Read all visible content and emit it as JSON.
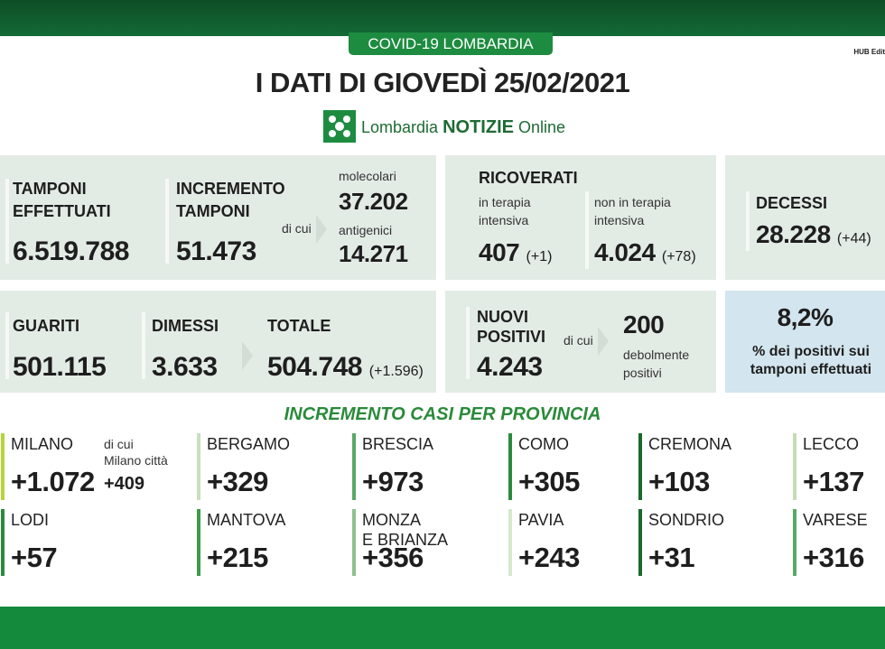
{
  "header": {
    "badge": "COVID-19 LOMBARDIA",
    "editor": "HUB Edit",
    "title": "I DATI DI GIOVEDÌ 25/02/2021",
    "logo": {
      "brand": "Lombardia",
      "name": "NOTIZIE",
      "suffix": "Online"
    }
  },
  "tests": {
    "performed": {
      "label": [
        "TAMPONI",
        "EFFETTUATI"
      ],
      "value": "6.519.788"
    },
    "increase": {
      "label": [
        "INCREMENTO",
        "TAMPONI"
      ],
      "value": "51.473",
      "of_which": "di cui"
    },
    "molecular": {
      "label": "molecolari",
      "value": "37.202"
    },
    "antigen": {
      "label": "antigenici",
      "value": "14.271"
    }
  },
  "hospitalized": {
    "title": "RICOVERATI",
    "icu": {
      "label": [
        "in terapia",
        "intensiva"
      ],
      "value": "407",
      "change": "(+1)"
    },
    "non_icu": {
      "label": [
        "non in terapia",
        "intensiva"
      ],
      "value": "4.024",
      "change": "(+78)"
    }
  },
  "deaths": {
    "label": "DECESSI",
    "value": "28.228",
    "change": "(+44)"
  },
  "recovered": {
    "healed": {
      "label": "GUARITI",
      "value": "501.115"
    },
    "discharged": {
      "label": "DIMESSI",
      "value": "3.633"
    },
    "total": {
      "label": "TOTALE",
      "value": "504.748",
      "change": "(+1.596)"
    }
  },
  "positives": {
    "label": [
      "NUOVI",
      "POSITIVI"
    ],
    "value": "4.243",
    "of_which": "di cui",
    "weak": {
      "value": "200",
      "label": [
        "debolmente",
        "positivi"
      ]
    }
  },
  "rate": {
    "value": "8,2%",
    "label": [
      "% dei positivi sui",
      "tamponi effettuati"
    ]
  },
  "provinces": {
    "title": "INCREMENTO CASI PER PROVINCIA",
    "items": [
      {
        "name": [
          "MILANO"
        ],
        "value": "+1.072",
        "note": [
          "di cui",
          "Milano città"
        ],
        "note_value": "+409"
      },
      {
        "name": [
          "BERGAMO"
        ],
        "value": "+329"
      },
      {
        "name": [
          "BRESCIA"
        ],
        "value": "+973"
      },
      {
        "name": [
          "COMO"
        ],
        "value": "+305"
      },
      {
        "name": [
          "CREMONA"
        ],
        "value": "+103"
      },
      {
        "name": [
          "LECCO"
        ],
        "value": "+137"
      },
      {
        "name": [
          "LODI"
        ],
        "value": "+57"
      },
      {
        "name": [
          "MANTOVA"
        ],
        "value": "+215"
      },
      {
        "name": [
          "MONZA",
          "E BRIANZA"
        ],
        "value": "+356"
      },
      {
        "name": [
          "PAVIA"
        ],
        "value": "+243"
      },
      {
        "name": [
          "SONDRIO"
        ],
        "value": "+31"
      },
      {
        "name": [
          "VARESE"
        ],
        "value": "+316"
      }
    ]
  }
}
